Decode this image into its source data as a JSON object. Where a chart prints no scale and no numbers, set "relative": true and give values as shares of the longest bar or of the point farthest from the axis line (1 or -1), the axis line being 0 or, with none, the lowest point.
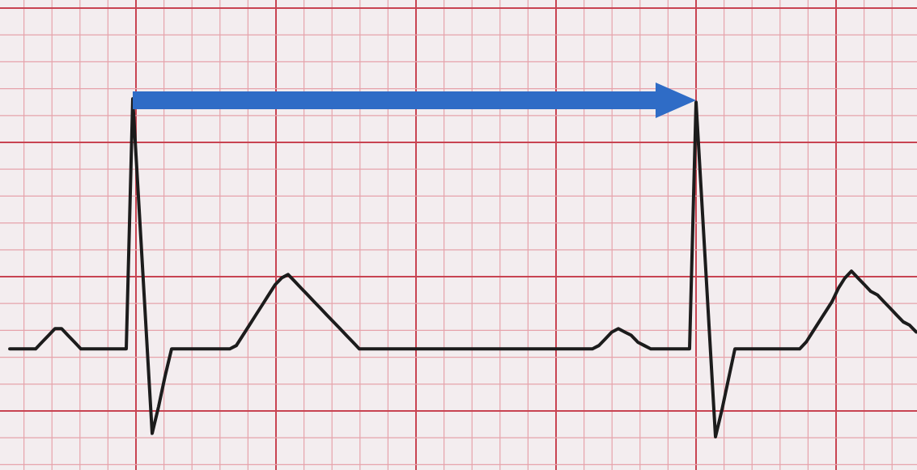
{
  "chart_data": {
    "type": "line",
    "relative": true,
    "grid": true,
    "marker": "none",
    "line_style": "solid",
    "categories": [
      null,
      null,
      null,
      null,
      null,
      null,
      null,
      null,
      null,
      null,
      null,
      null,
      null,
      null,
      null,
      null,
      null,
      null,
      null,
      null,
      null,
      null,
      null,
      null,
      null,
      null,
      null,
      null,
      null,
      null,
      null,
      null,
      null,
      null,
      null,
      null,
      null,
      null,
      null,
      null,
      null,
      null,
      null,
      null,
      null,
      null,
      null,
      null,
      null,
      null,
      null,
      null,
      null,
      null,
      null,
      null,
      null,
      null,
      null,
      null,
      null,
      null,
      null,
      null,
      null,
      null,
      null,
      null,
      null,
      null,
      null,
      null,
      null,
      null,
      null,
      null,
      null,
      null,
      null,
      null,
      null,
      null,
      null,
      null,
      null,
      null,
      null,
      null,
      null,
      null,
      null,
      null,
      null,
      null,
      null,
      null,
      null,
      null,
      null,
      null,
      null,
      null,
      null,
      null,
      null,
      null,
      null,
      null,
      null,
      null,
      null,
      null,
      null,
      null,
      null,
      null,
      null,
      null,
      null,
      null,
      null,
      null,
      null,
      null,
      null,
      null,
      null,
      null,
      null,
      null,
      null,
      null,
      null,
      null,
      null,
      null,
      null,
      null,
      null,
      null,
      null
    ],
    "series": [
      {
        "color": "#1c1c1c",
        "values": [
          0.26,
          0.26,
          0.26,
          0.26,
          0.26,
          0.28,
          0.3,
          0.32,
          0.32,
          0.3,
          0.28,
          0.26,
          0.26,
          0.26,
          0.26,
          0.26,
          0.26,
          0.26,
          0.26,
          1,
          0.67,
          0.34,
          0.01,
          0.09,
          0.18,
          0.26,
          0.26,
          0.26,
          0.26,
          0.26,
          0.26,
          0.26,
          0.26,
          0.26,
          0.26,
          0.27,
          0.3,
          0.33,
          0.36,
          0.39,
          0.42,
          0.45,
          0.47,
          0.48,
          0.46,
          0.44,
          0.42,
          0.4,
          0.38,
          0.36,
          0.34,
          0.32,
          0.3,
          0.28,
          0.26,
          0.26,
          0.26,
          0.26,
          0.26,
          0.26,
          0.26,
          0.26,
          0.26,
          0.26,
          0.26,
          0.26,
          0.26,
          0.26,
          0.26,
          0.26,
          0.26,
          0.26,
          0.26,
          0.26,
          0.26,
          0.26,
          0.26,
          0.26,
          0.26,
          0.26,
          0.26,
          0.26,
          0.26,
          0.26,
          0.26,
          0.26,
          0.26,
          0.26,
          0.26,
          0.26,
          0.26,
          0.27,
          0.29,
          0.31,
          0.32,
          0.31,
          0.3,
          0.28,
          0.27,
          0.26,
          0.26,
          0.26,
          0.26,
          0.26,
          0.26,
          0.26,
          0.99,
          0.66,
          0.33,
          0,
          0.08,
          0.17,
          0.26,
          0.26,
          0.26,
          0.26,
          0.26,
          0.26,
          0.26,
          0.26,
          0.26,
          0.26,
          0.26,
          0.28,
          0.31,
          0.34,
          0.37,
          0.4,
          0.44,
          0.47,
          0.49,
          0.47,
          0.45,
          0.43,
          0.42,
          0.4,
          0.38,
          0.36,
          0.34,
          0.33,
          0.31
        ]
      }
    ]
  }
}
